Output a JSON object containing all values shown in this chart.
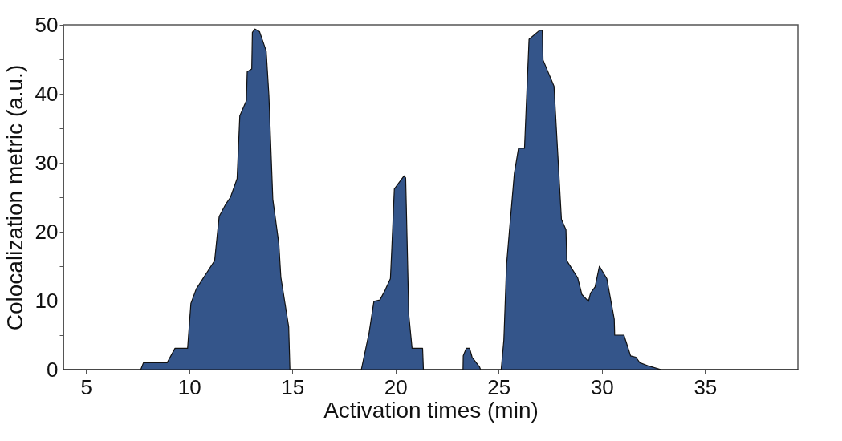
{
  "chart_data": {
    "type": "area",
    "xlabel": "Activation times (min)",
    "ylabel": "Colocalization metric (a.u.)",
    "x": [
      3.9,
      7.65,
      7.78,
      8.93,
      9.31,
      9.92,
      10.08,
      10.34,
      11.23,
      11.45,
      11.75,
      12.0,
      12.32,
      12.45,
      12.77,
      12.81,
      13.03,
      13.06,
      13.19,
      13.41,
      13.73,
      13.86,
      14.05,
      14.34,
      14.44,
      14.82,
      14.88,
      18.34,
      18.72,
      18.95,
      19.24,
      19.49,
      19.75,
      19.81,
      19.94,
      20.41,
      20.49,
      20.64,
      20.8,
      21.31,
      21.35,
      23.27,
      23.28,
      23.43,
      23.59,
      23.71,
      24.07,
      24.12,
      25.12,
      25.25,
      25.38,
      25.51,
      25.76,
      25.96,
      26.25,
      26.47,
      26.98,
      27.11,
      27.15,
      27.68,
      28.04,
      28.26,
      28.3,
      28.83,
      29.03,
      29.35,
      29.45,
      29.67,
      29.88,
      30.24,
      30.6,
      30.62,
      31.07,
      31.39,
      31.65,
      31.84,
      32.29,
      32.87,
      39.5
    ],
    "series": [
      {
        "color": "#34558a",
        "values": [
          0,
          0,
          1.0,
          1.0,
          3.1,
          3.1,
          9.6,
          11.7,
          15.8,
          22.2,
          23.9,
          25.0,
          27.7,
          36.8,
          39.0,
          43.2,
          43.6,
          48.9,
          49.4,
          49.0,
          46.2,
          39.8,
          24.7,
          18.3,
          13.4,
          6.2,
          0,
          0,
          5.4,
          9.9,
          10.1,
          11.5,
          13.2,
          17.1,
          26.2,
          28.1,
          27.8,
          8.0,
          3.1,
          3.1,
          0,
          0,
          2.0,
          3.1,
          3.1,
          1.8,
          0.4,
          0,
          0,
          4.3,
          15.2,
          19.8,
          28.5,
          32.1,
          32.1,
          47.9,
          49.2,
          49.2,
          44.9,
          41.1,
          21.8,
          20.3,
          15.8,
          13.3,
          10.9,
          9.9,
          11.1,
          12.0,
          15.0,
          13.2,
          7.3,
          5.0,
          5.0,
          2.0,
          1.8,
          1.0,
          0.5,
          0,
          0
        ]
      }
    ],
    "xlim": [
      3.9,
      39.5
    ],
    "xticks": [
      5,
      10,
      15,
      20,
      25,
      30,
      35
    ],
    "ylim": [
      0,
      50
    ],
    "yticks": [
      0,
      {
        "value": 5,
        "label": null
      },
      10,
      {
        "value": 15,
        "label": null
      },
      20,
      {
        "value": 25,
        "label": null
      },
      30,
      {
        "value": 35,
        "label": null
      },
      40,
      {
        "value": 45,
        "label": null
      },
      50
    ],
    "grid": false
  }
}
